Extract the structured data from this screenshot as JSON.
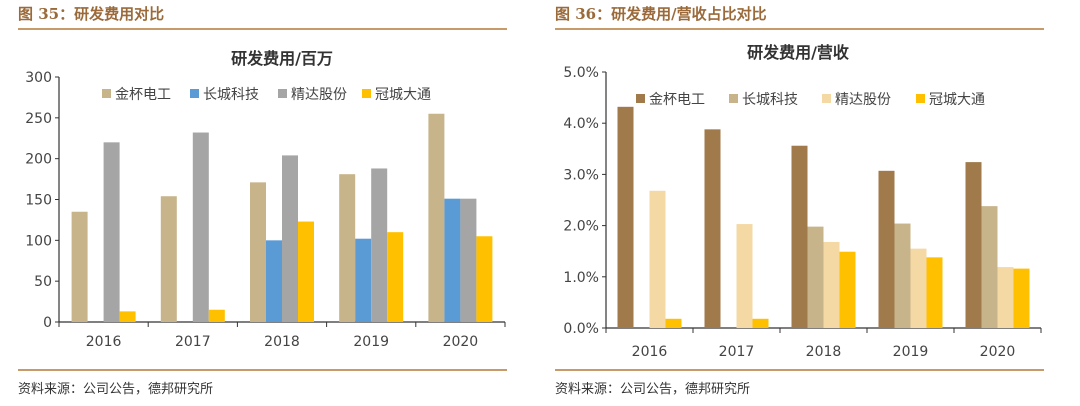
{
  "left": {
    "figure_title": "图 35：研发费用对比",
    "source": "资料来源：公司公告，德邦研究所"
  },
  "right": {
    "figure_title": "图 36：研发费用/营收占比对比",
    "source": "资料来源：公司公告，德邦研究所"
  },
  "chart_data": [
    {
      "type": "bar",
      "title": "研发费用/百万",
      "categories": [
        "2016",
        "2017",
        "2018",
        "2019",
        "2020"
      ],
      "ylim": [
        0,
        300
      ],
      "yticks": [
        0,
        50,
        100,
        150,
        200,
        250,
        300
      ],
      "ytick_labels": [
        "0",
        "50",
        "100",
        "150",
        "200",
        "250",
        "300"
      ],
      "legend_position": "top",
      "grid": false,
      "series": [
        {
          "name": "金杯电工",
          "color": "#c8b48a",
          "values": [
            135,
            154,
            171,
            181,
            255
          ]
        },
        {
          "name": "长城科技",
          "color": "#5b9bd5",
          "values": [
            null,
            null,
            100,
            102,
            151
          ]
        },
        {
          "name": "精达股份",
          "color": "#a5a5a5",
          "values": [
            220,
            232,
            204,
            188,
            151
          ]
        },
        {
          "name": "冠城大通",
          "color": "#ffc000",
          "values": [
            13,
            15,
            123,
            110,
            105
          ]
        }
      ]
    },
    {
      "type": "bar",
      "title": "研发费用/营收",
      "categories": [
        "2016",
        "2017",
        "2018",
        "2019",
        "2020"
      ],
      "ylim": [
        0,
        5
      ],
      "yticks": [
        0,
        1,
        2,
        3,
        4,
        5
      ],
      "ytick_labels": [
        "0.0%",
        "1.0%",
        "2.0%",
        "3.0%",
        "4.0%",
        "5.0%"
      ],
      "unit": "%",
      "legend_position": "top",
      "grid": false,
      "series": [
        {
          "name": "金杯电工",
          "color": "#a07a4a",
          "values": [
            4.32,
            3.88,
            3.56,
            3.07,
            3.24
          ]
        },
        {
          "name": "长城科技",
          "color": "#c8b48a",
          "values": [
            null,
            null,
            1.98,
            2.04,
            2.38
          ]
        },
        {
          "name": "精达股份",
          "color": "#f5d9a5",
          "values": [
            2.68,
            2.03,
            1.68,
            1.55,
            1.19
          ]
        },
        {
          "name": "冠城大通",
          "color": "#ffc000",
          "values": [
            0.18,
            0.18,
            1.49,
            1.38,
            1.16
          ]
        }
      ]
    }
  ]
}
